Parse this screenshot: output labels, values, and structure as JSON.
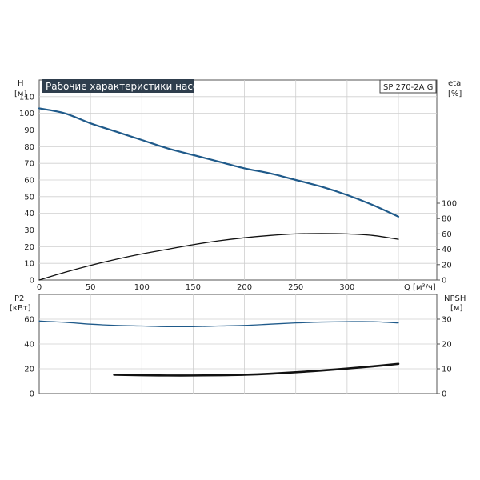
{
  "chart_data": [
    {
      "type": "line",
      "title": "Рабочие характеристики насоса",
      "model": "SP 270-2A G",
      "left_axis": {
        "label": "H",
        "unit": "[м]",
        "ticks": [
          0,
          10,
          20,
          30,
          40,
          50,
          60,
          70,
          80,
          90,
          100,
          110
        ],
        "ylim": [
          0,
          120
        ]
      },
      "right_axis": {
        "label": "eta",
        "unit": "[%]",
        "ticks": [
          0,
          20,
          40,
          60,
          80,
          100
        ],
        "ylim": [
          0,
          100
        ]
      },
      "x_axis": {
        "label": "Q [м³/ч]",
        "ticks": [
          0,
          50,
          100,
          150,
          200,
          250,
          300
        ],
        "xlim": [
          0,
          350
        ]
      },
      "grid": true,
      "series": [
        {
          "axis": "left",
          "color": "#1f5a8a",
          "points": [
            [
              0,
              103
            ],
            [
              25,
              100
            ],
            [
              50,
              94
            ],
            [
              75,
              89
            ],
            [
              100,
              84
            ],
            [
              125,
              79
            ],
            [
              150,
              75
            ],
            [
              175,
              71
            ],
            [
              200,
              67
            ],
            [
              225,
              64
            ],
            [
              250,
              60
            ],
            [
              275,
              56
            ],
            [
              300,
              51
            ],
            [
              325,
              45
            ],
            [
              350,
              38
            ]
          ]
        },
        {
          "axis": "right",
          "color": "#111111",
          "points": [
            [
              0,
              0
            ],
            [
              25,
              10
            ],
            [
              50,
              19
            ],
            [
              75,
              27
            ],
            [
              100,
              34
            ],
            [
              125,
              40
            ],
            [
              150,
              46
            ],
            [
              175,
              51
            ],
            [
              200,
              55
            ],
            [
              225,
              58
            ],
            [
              250,
              60
            ],
            [
              275,
              60.5
            ],
            [
              300,
              60
            ],
            [
              325,
              58
            ],
            [
              350,
              53
            ]
          ]
        }
      ]
    },
    {
      "type": "line",
      "left_axis": {
        "label": "P2",
        "unit": "[кВт]",
        "ticks": [
          0,
          20,
          40,
          60
        ],
        "ylim": [
          0,
          60
        ]
      },
      "right_axis": {
        "label": "NPSH",
        "unit": "[м]",
        "ticks": [
          0,
          10,
          20,
          30
        ],
        "ylim": [
          0,
          30
        ]
      },
      "x_axis": {
        "xlim": [
          0,
          350
        ]
      },
      "grid": true,
      "series": [
        {
          "axis": "left",
          "color": "#1f5a8a",
          "points": [
            [
              0,
              58.5
            ],
            [
              25,
              57.5
            ],
            [
              50,
              56
            ],
            [
              75,
              55
            ],
            [
              100,
              54.5
            ],
            [
              125,
              54
            ],
            [
              150,
              54
            ],
            [
              175,
              54.5
            ],
            [
              200,
              55
            ],
            [
              225,
              56
            ],
            [
              250,
              57
            ],
            [
              275,
              57.7
            ],
            [
              300,
              58
            ],
            [
              325,
              58
            ],
            [
              350,
              57
            ]
          ]
        },
        {
          "axis": "right",
          "color": "#111111",
          "points": [
            [
              73,
              7.6
            ],
            [
              100,
              7.4
            ],
            [
              125,
              7.3
            ],
            [
              150,
              7.3
            ],
            [
              175,
              7.4
            ],
            [
              200,
              7.6
            ],
            [
              225,
              8
            ],
            [
              250,
              8.6
            ],
            [
              275,
              9.3
            ],
            [
              300,
              10.1
            ],
            [
              325,
              11
            ],
            [
              350,
              12
            ]
          ]
        }
      ]
    }
  ]
}
